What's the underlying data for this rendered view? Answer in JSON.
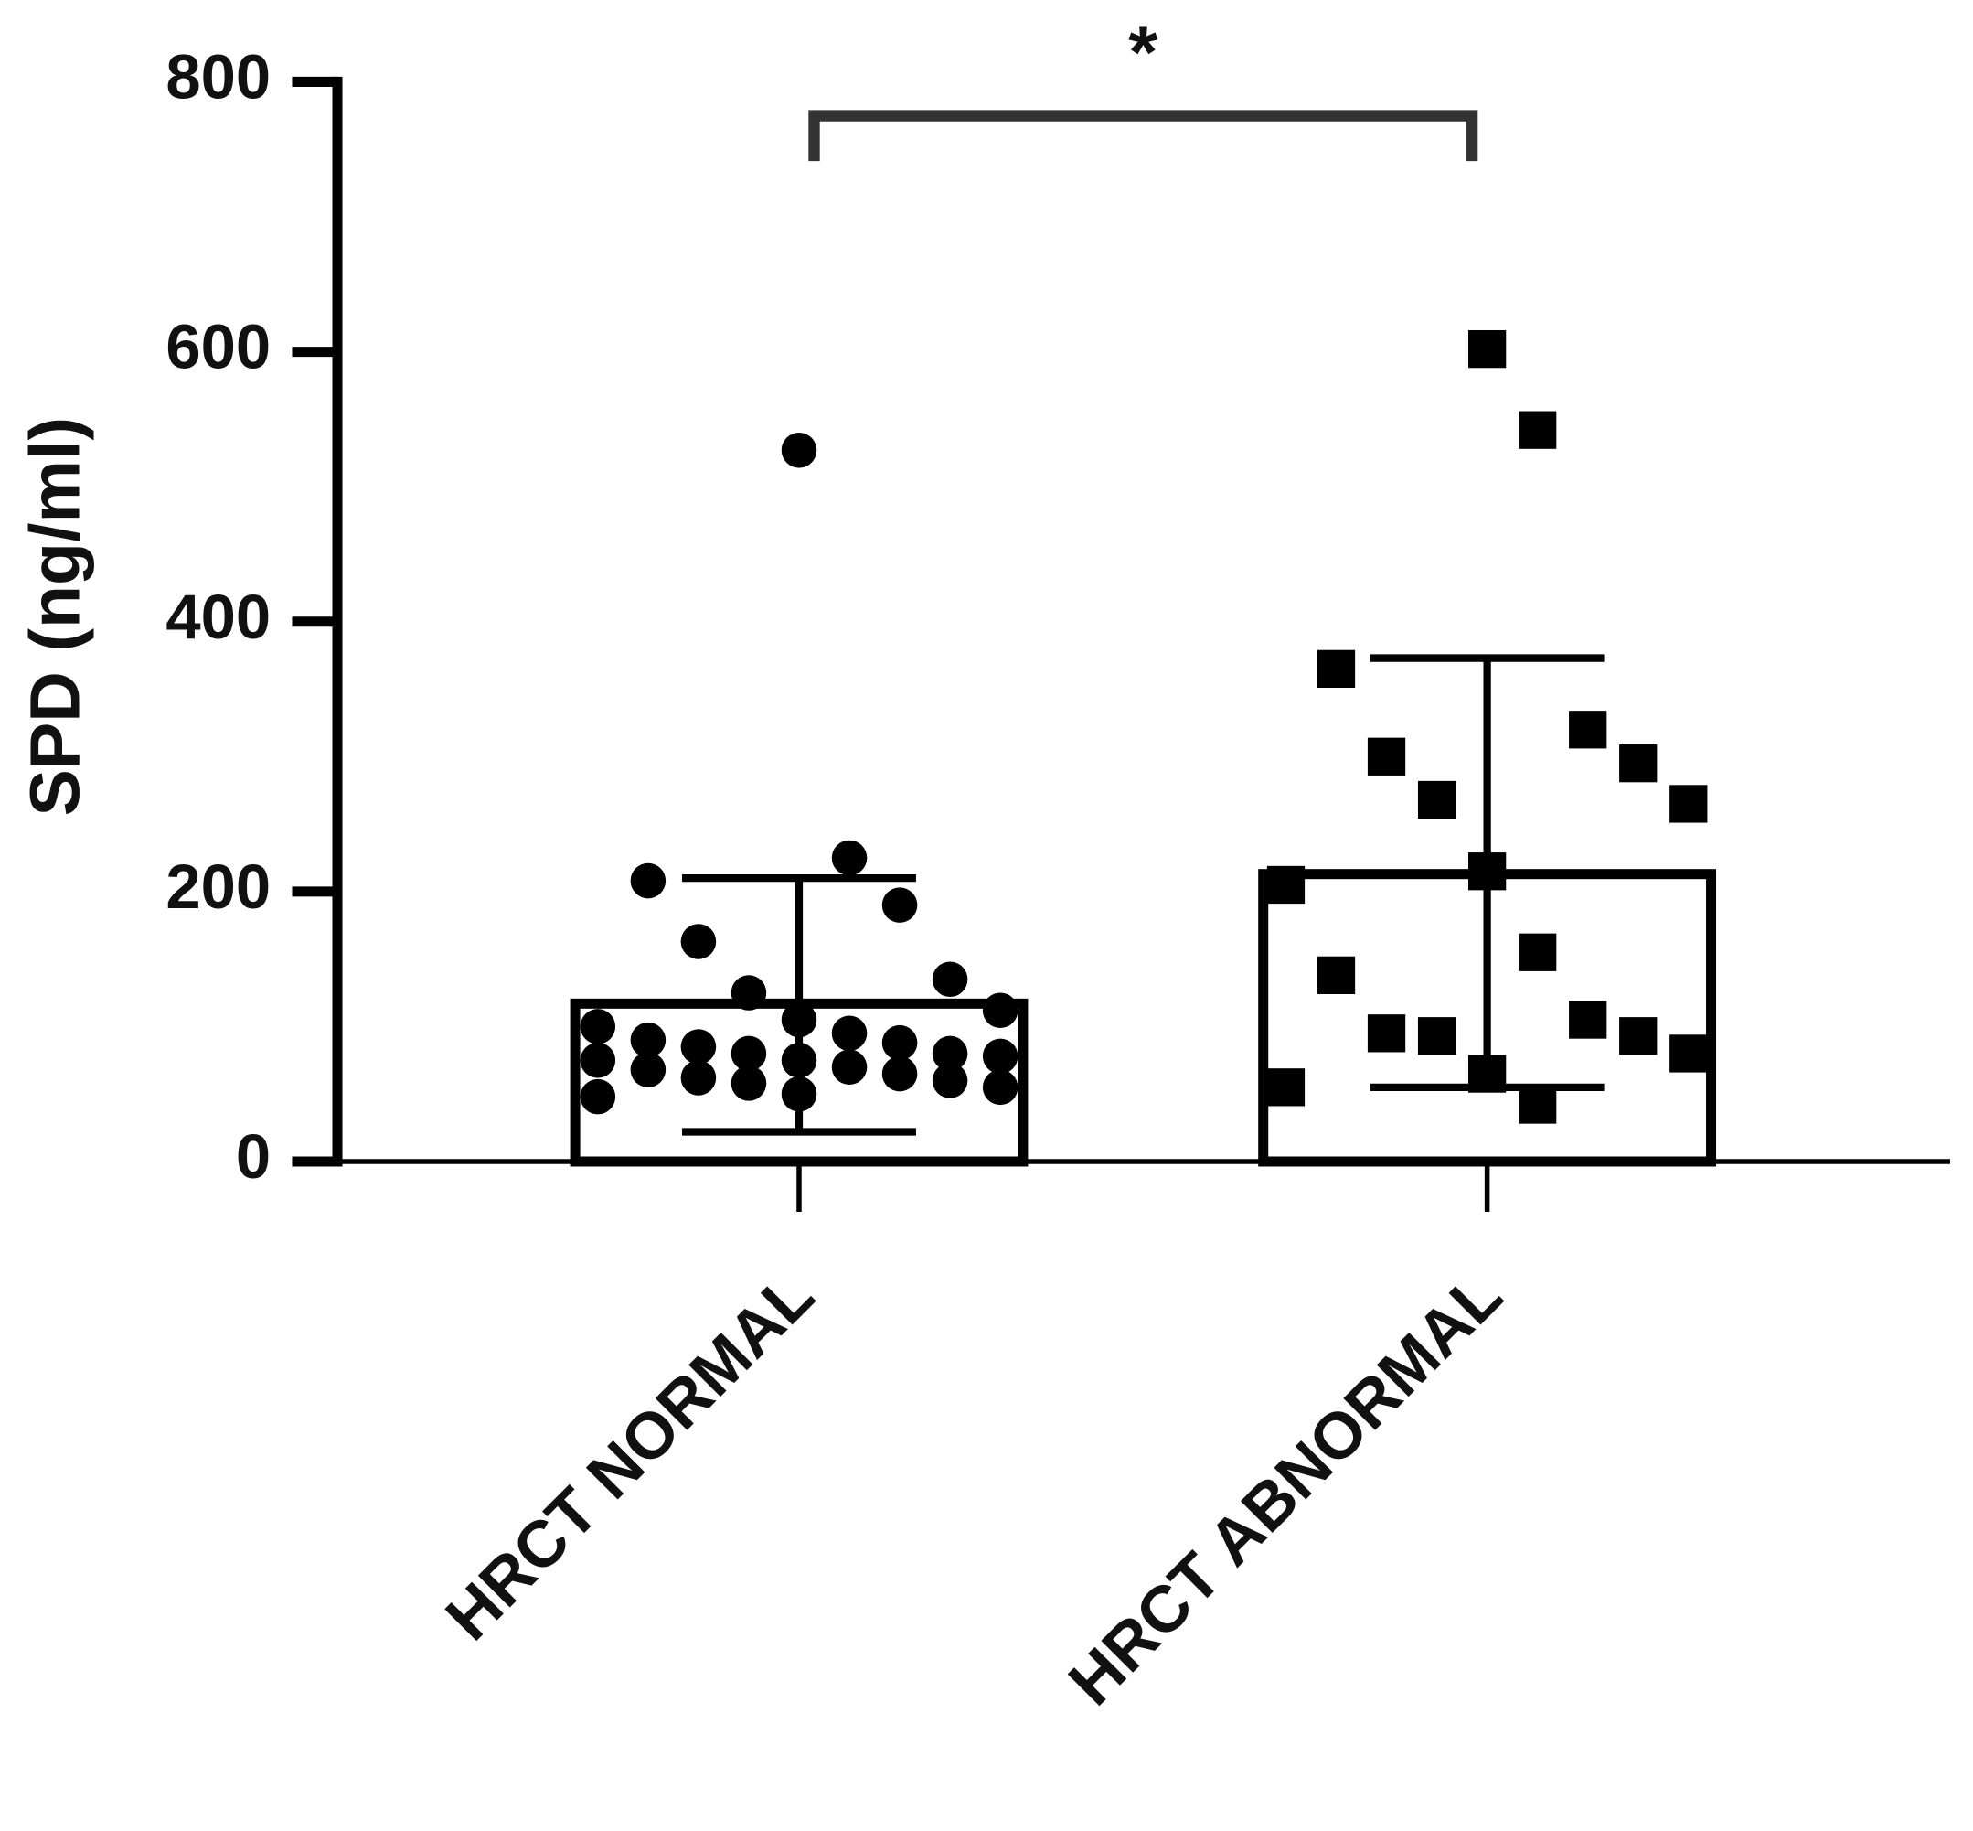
{
  "chart_data": {
    "type": "bar",
    "y_label": "SPD (ng/ml)",
    "categories": [
      "HRCT NORMAL",
      "HRCT ABNORMAL"
    ],
    "values": [
      117,
      213
    ],
    "error_upper": [
      210,
      373
    ],
    "error_lower": [
      22,
      55
    ],
    "points": [
      [
        527,
        225,
        208,
        190,
        163,
        135,
        125,
        112,
        105,
        100,
        95,
        90,
        88,
        85,
        80,
        80,
        78,
        75,
        75,
        70,
        68,
        65,
        62,
        60,
        58,
        55,
        50,
        48
      ],
      [
        602,
        542,
        365,
        320,
        300,
        295,
        268,
        265,
        215,
        205,
        155,
        138,
        105,
        95,
        93,
        93,
        80,
        65,
        55,
        42
      ]
    ],
    "markers": [
      "circle",
      "square"
    ],
    "color": "#000000",
    "significance": "*",
    "ylim": [
      0,
      800
    ],
    "yticks": [
      0,
      200,
      400,
      600,
      800
    ]
  }
}
